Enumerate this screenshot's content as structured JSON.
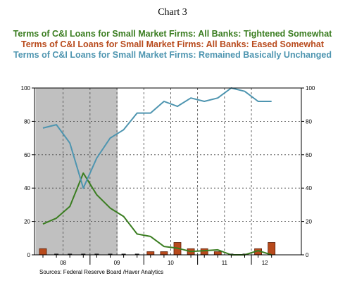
{
  "chart_data": {
    "type": "line",
    "title": "Chart 3",
    "series": [
      {
        "name": "Terms of C&I Loans for Small Market Firms: All Banks: Tightened Somewhat",
        "kind": "line",
        "color": "#3a7d20",
        "values": [
          18.5,
          22,
          29,
          49,
          36,
          28,
          23,
          12.5,
          11,
          5,
          4,
          2,
          2.5,
          3,
          0,
          0,
          2.5,
          0
        ]
      },
      {
        "name": "Terms of C&I Loans for Small Market Firms: All Banks: Eased Somewhat",
        "kind": "bar",
        "color": "#b84a1c",
        "values": [
          3.7,
          0,
          0,
          0,
          0,
          0,
          0,
          0,
          1.9,
          1.9,
          7.4,
          3.7,
          3.7,
          1.9,
          0,
          0,
          3.7,
          7.4
        ]
      },
      {
        "name": "Terms of C&I Loans for Small Market Firms: Remained Basically Unchanged",
        "kind": "line",
        "color": "#4e95b0",
        "values": [
          76,
          78,
          67,
          40,
          58,
          70,
          75,
          85,
          85,
          92,
          89,
          94,
          92,
          94,
          100,
          98,
          92,
          92
        ]
      }
    ],
    "x": [
      "08Q1",
      "08Q2",
      "08Q3",
      "08Q4",
      "09Q1",
      "09Q2",
      "09Q3",
      "09Q4",
      "10Q1",
      "10Q2",
      "10Q3",
      "10Q4",
      "11Q1",
      "11Q2",
      "11Q3",
      "11Q4",
      "12Q1",
      "12Q2"
    ],
    "x_tick_labels": [
      "08",
      "09",
      "10",
      "11",
      "12"
    ],
    "y_ticks": [
      "0",
      "20",
      "40",
      "60",
      "80",
      "100"
    ],
    "ylim": [
      0,
      100
    ],
    "recession_shading": {
      "from": "08Q1",
      "to": "09Q2",
      "color": "#c0c0c0"
    },
    "grid": "dashed vertical and horizontal",
    "source": "Sources:  Federal Reserve Board /Haver Analytics"
  }
}
